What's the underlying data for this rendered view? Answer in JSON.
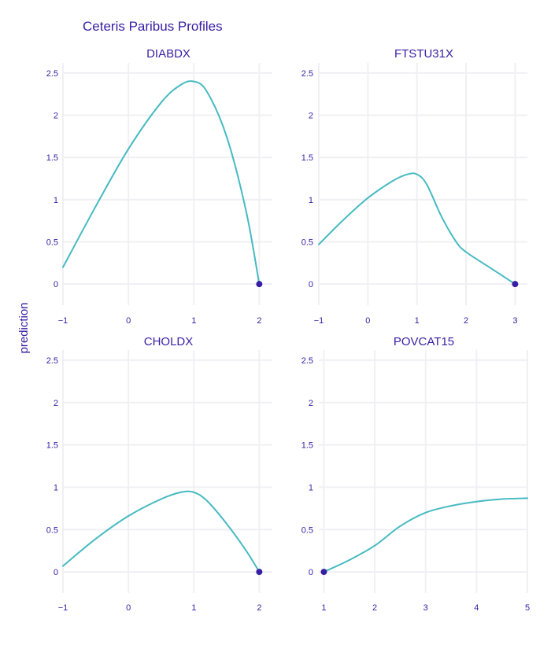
{
  "chart_data": {
    "type": "line",
    "title": "Ceteris Paribus Profiles",
    "ylabel": "prediction",
    "colors": {
      "line": "#46bac2",
      "point": "#371ea3",
      "text": "#371ea3",
      "grid": "#f0f0f4"
    },
    "grid": true,
    "ylim": [
      -0.25,
      2.62
    ],
    "yticks": [
      0,
      0.5,
      1,
      1.5,
      2,
      2.5
    ],
    "ytick_labels": [
      "0",
      "0.5",
      "1",
      "1.5",
      "2",
      "2.5"
    ],
    "panels": [
      {
        "title": "DIABDX",
        "xlim": [
          -1,
          2.2
        ],
        "xticks": [
          -1,
          0,
          1,
          2
        ],
        "xtick_labels": [
          "−1",
          "0",
          "1",
          "2"
        ],
        "line": {
          "x": [
            -1.0,
            -0.5,
            0.0,
            0.5,
            0.8,
            1.0,
            1.2,
            1.5,
            1.8,
            2.0
          ],
          "y": [
            0.2,
            0.92,
            1.6,
            2.15,
            2.36,
            2.4,
            2.28,
            1.75,
            0.86,
            0.0
          ]
        },
        "point": {
          "x": 2,
          "y": 0
        }
      },
      {
        "title": "FTSTU31X",
        "xlim": [
          -1,
          3.25
        ],
        "xticks": [
          -1,
          0,
          1,
          2,
          3
        ],
        "xtick_labels": [
          "−1",
          "0",
          "1",
          "2",
          "3"
        ],
        "line": {
          "x": [
            -1.0,
            -0.5,
            0.0,
            0.5,
            0.8,
            1.0,
            1.2,
            1.5,
            1.8,
            2.0,
            2.5,
            3.0
          ],
          "y": [
            0.47,
            0.76,
            1.02,
            1.22,
            1.3,
            1.3,
            1.18,
            0.8,
            0.5,
            0.38,
            0.19,
            0.0
          ]
        },
        "point": {
          "x": 3,
          "y": 0
        }
      },
      {
        "title": "CHOLDX",
        "xlim": [
          -1,
          2.2
        ],
        "xticks": [
          -1,
          0,
          1,
          2
        ],
        "xtick_labels": [
          "−1",
          "0",
          "1",
          "2"
        ],
        "line": {
          "x": [
            -1.0,
            -0.5,
            0.0,
            0.5,
            0.8,
            1.0,
            1.2,
            1.5,
            1.8,
            2.0
          ],
          "y": [
            0.07,
            0.39,
            0.66,
            0.86,
            0.94,
            0.94,
            0.84,
            0.57,
            0.25,
            0.0
          ]
        },
        "point": {
          "x": 2,
          "y": 0
        }
      },
      {
        "title": "POVCAT15",
        "xlim": [
          0.9,
          5.0
        ],
        "xticks": [
          1,
          2,
          3,
          4,
          5
        ],
        "xtick_labels": [
          "1",
          "2",
          "3",
          "4",
          "5"
        ],
        "line": {
          "x": [
            1.0,
            1.5,
            2.0,
            2.5,
            3.0,
            3.5,
            4.0,
            4.5,
            5.0
          ],
          "y": [
            0.0,
            0.14,
            0.31,
            0.54,
            0.7,
            0.78,
            0.83,
            0.86,
            0.87
          ]
        },
        "point": {
          "x": 1,
          "y": 0
        }
      }
    ]
  }
}
